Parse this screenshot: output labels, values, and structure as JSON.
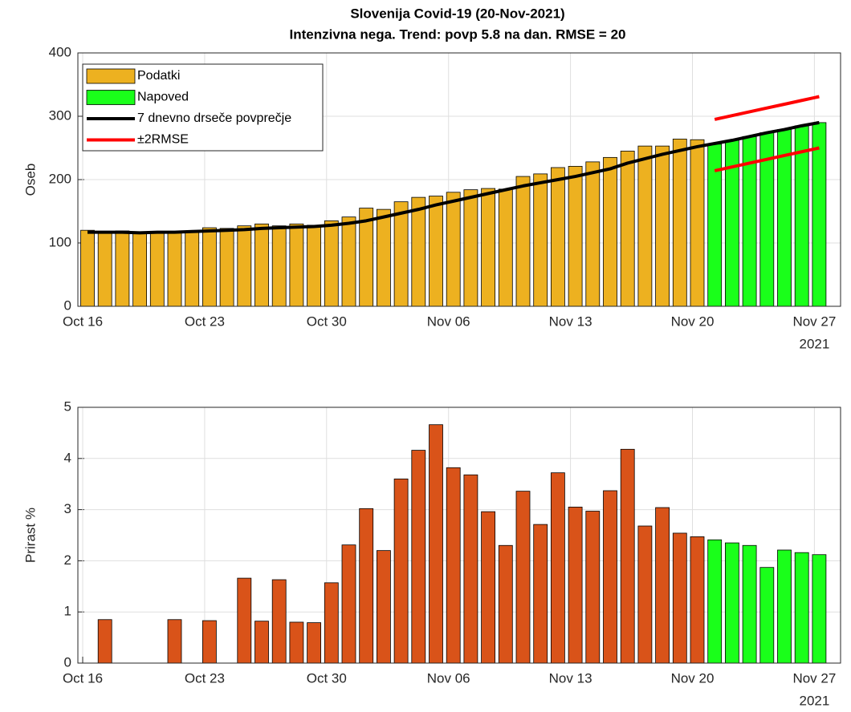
{
  "chart_data": [
    {
      "type": "bar",
      "title": "Slovenija Covid-19 (20-Nov-2021)",
      "subtitle": "Intenzivna nega. Trend: povp 5.8 na dan. RMSE = 20",
      "ylabel": "Oseb",
      "year_label": "2021",
      "categories": [
        "Oct 16",
        null,
        null,
        null,
        null,
        null,
        null,
        "Oct 23",
        null,
        null,
        null,
        null,
        null,
        null,
        "Oct 30",
        null,
        null,
        null,
        null,
        null,
        null,
        "Nov 06",
        null,
        null,
        null,
        null,
        null,
        null,
        "Nov 13",
        null,
        null,
        null,
        null,
        null,
        null,
        "Nov 20",
        null,
        null,
        null,
        null,
        null,
        null,
        "Nov 27"
      ],
      "ylim": [
        0,
        400
      ],
      "yticks": [
        0,
        100,
        200,
        300,
        400
      ],
      "grid": true,
      "legend": "northwest",
      "series": [
        {
          "name": "Podatki",
          "type": "bar",
          "color": "#EDB120",
          "values": [
            120,
            118,
            119,
            117,
            117,
            118,
            118,
            124,
            123,
            127,
            130,
            127,
            130,
            128,
            135,
            141,
            155,
            153,
            165,
            172,
            174,
            180,
            184,
            186,
            185,
            205,
            209,
            219,
            221,
            228,
            235,
            245,
            253,
            253,
            264,
            263,
            null,
            null,
            null,
            null,
            null,
            null,
            null
          ]
        },
        {
          "name": "Napoved",
          "type": "bar",
          "color": "#1AFF1A",
          "values": [
            null,
            null,
            null,
            null,
            null,
            null,
            null,
            null,
            null,
            null,
            null,
            null,
            null,
            null,
            null,
            null,
            null,
            null,
            null,
            null,
            null,
            null,
            null,
            null,
            null,
            null,
            null,
            null,
            null,
            null,
            null,
            null,
            null,
            null,
            null,
            null,
            256,
            262,
            268,
            274,
            279,
            285,
            290
          ]
        },
        {
          "name": "7 dnevno drseče povprečje",
          "type": "line",
          "color": "#000000",
          "values": [
            117,
            117,
            117,
            116,
            117,
            117,
            118,
            119,
            120,
            121,
            123,
            124,
            125,
            126,
            128,
            131,
            135,
            141,
            147,
            153,
            160,
            166,
            172,
            178,
            184,
            190,
            195,
            200,
            205,
            211,
            217,
            226,
            233,
            240,
            246,
            252,
            257,
            262,
            268,
            274,
            279,
            285,
            290
          ]
        },
        {
          "name": "±2RMSE",
          "type": "line",
          "color": "#FF0000",
          "values": [
            null,
            null,
            null,
            null,
            null,
            null,
            null,
            null,
            null,
            null,
            null,
            null,
            null,
            null,
            null,
            null,
            null,
            null,
            null,
            null,
            null,
            null,
            null,
            null,
            null,
            null,
            null,
            null,
            null,
            null,
            null,
            null,
            null,
            null,
            null,
            null,
            295,
            301,
            307,
            313,
            319,
            325,
            331
          ],
          "values_lower": [
            null,
            null,
            null,
            null,
            null,
            null,
            null,
            null,
            null,
            null,
            null,
            null,
            null,
            null,
            null,
            null,
            null,
            null,
            null,
            null,
            null,
            null,
            null,
            null,
            null,
            null,
            null,
            null,
            null,
            null,
            null,
            null,
            null,
            null,
            null,
            null,
            214,
            220,
            226,
            232,
            238,
            244,
            250
          ]
        }
      ]
    },
    {
      "type": "bar",
      "ylabel": "Prirast %",
      "year_label": "2021",
      "categories": [
        "Oct 16",
        null,
        null,
        null,
        null,
        null,
        null,
        "Oct 23",
        null,
        null,
        null,
        null,
        null,
        null,
        "Oct 30",
        null,
        null,
        null,
        null,
        null,
        null,
        "Nov 06",
        null,
        null,
        null,
        null,
        null,
        null,
        "Nov 13",
        null,
        null,
        null,
        null,
        null,
        null,
        "Nov 20",
        null,
        null,
        null,
        null,
        null,
        null,
        "Nov 27"
      ],
      "ylim": [
        0,
        5
      ],
      "yticks": [
        0,
        1,
        2,
        3,
        4,
        5
      ],
      "grid": true,
      "series": [
        {
          "type": "bar",
          "color": "#D95319",
          "values": [
            0,
            0.85,
            0,
            0,
            0,
            0.85,
            0,
            0.83,
            0,
            1.66,
            0.82,
            1.63,
            0.8,
            0.79,
            1.57,
            2.31,
            3.02,
            2.2,
            3.6,
            4.16,
            4.66,
            3.82,
            3.68,
            2.96,
            2.3,
            3.36,
            2.71,
            3.72,
            3.05,
            2.97,
            3.37,
            4.18,
            2.68,
            3.04,
            2.54,
            2.47,
            null,
            null,
            null,
            null,
            null,
            null,
            null
          ]
        },
        {
          "type": "bar",
          "color": "#1AFF1A",
          "values": [
            null,
            null,
            null,
            null,
            null,
            null,
            null,
            null,
            null,
            null,
            null,
            null,
            null,
            null,
            null,
            null,
            null,
            null,
            null,
            null,
            null,
            null,
            null,
            null,
            null,
            null,
            null,
            null,
            null,
            null,
            null,
            null,
            null,
            null,
            null,
            null,
            2.41,
            2.35,
            2.3,
            1.87,
            2.21,
            2.16,
            2.12
          ]
        }
      ]
    }
  ]
}
